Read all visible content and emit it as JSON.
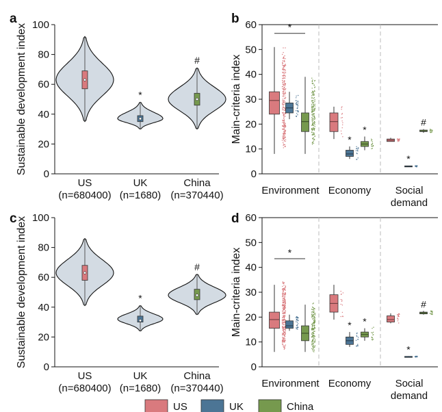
{
  "colors": {
    "US": "#d97a7e",
    "UK": "#4c7595",
    "China": "#76994e",
    "violin": "#d3dbe3",
    "sep": "#bbbbbb"
  },
  "legend": [
    "US",
    "UK",
    "China"
  ],
  "panel_labels": [
    "a",
    "b",
    "c",
    "d"
  ],
  "chart_data": [
    {
      "id": "a",
      "type": "violin",
      "ylabel": "Sustainable development index",
      "ylim": [
        0,
        100
      ],
      "yticks": [
        0,
        20,
        40,
        60,
        80,
        100
      ],
      "categories": [
        "US\n(n=680400)",
        "UK\n(n=1680)",
        "China\n(n=370440)"
      ],
      "series": [
        {
          "name": "US",
          "min": 35,
          "q1": 57,
          "median": 63,
          "q3": 69,
          "max": 92,
          "center": 63,
          "annotation": ""
        },
        {
          "name": "UK",
          "min": 30,
          "q1": 35,
          "median": 37,
          "q3": 39,
          "max": 48,
          "center": 37,
          "annotation": "*"
        },
        {
          "name": "China",
          "min": 30,
          "q1": 46,
          "median": 50,
          "q3": 54,
          "max": 71,
          "center": 50,
          "annotation": "#"
        }
      ]
    },
    {
      "id": "b",
      "type": "box",
      "ylabel": "Main-criteria index",
      "ylim": [
        0,
        60
      ],
      "yticks": [
        0,
        10,
        20,
        30,
        40,
        50,
        60
      ],
      "groups": [
        "Environment",
        "Economy",
        "Social\ndemand"
      ],
      "bracket": {
        "group": "Environment",
        "y": 56.5,
        "label": "*"
      },
      "data": [
        [
          {
            "name": "US",
            "min": 8,
            "q1": 24,
            "median": 29.5,
            "q3": 33,
            "max": 51,
            "pts": [
              8,
              52
            ],
            "annotation": ""
          },
          {
            "name": "UK",
            "min": 22,
            "q1": 24.5,
            "median": 26.5,
            "q3": 28.5,
            "max": 33,
            "pts": [
              22,
              32
            ],
            "annotation": ""
          },
          {
            "name": "China",
            "min": 8,
            "q1": 17,
            "median": 21,
            "q3": 24.5,
            "max": 39,
            "pts": [
              9,
              40
            ],
            "annotation": ""
          }
        ],
        [
          {
            "name": "US",
            "min": 14,
            "q1": 17,
            "median": 21,
            "q3": 24.5,
            "max": 27,
            "pts": [
              14,
              27
            ],
            "annotation": ""
          },
          {
            "name": "UK",
            "min": 6,
            "q1": 7,
            "median": 8,
            "q3": 9.5,
            "max": 11,
            "pts": [
              5.5,
              11.5
            ],
            "annotation": "*"
          },
          {
            "name": "China",
            "min": 9.5,
            "q1": 11,
            "median": 12,
            "q3": 13,
            "max": 15,
            "pts": [
              9.5,
              14.5
            ],
            "annotation": "*"
          }
        ],
        [
          {
            "name": "US",
            "min": 13,
            "q1": 13,
            "median": 13.5,
            "q3": 14,
            "max": 14.5,
            "pts": [
              12.5,
              14.5
            ],
            "annotation": ""
          },
          {
            "name": "UK",
            "min": 3,
            "q1": 3,
            "median": 3,
            "q3": 3.2,
            "max": 3.3,
            "pts": [
              2.8,
              3.3
            ],
            "annotation": "*"
          },
          {
            "name": "China",
            "min": 16.5,
            "q1": 17,
            "median": 17.2,
            "q3": 17.6,
            "max": 18,
            "pts": [
              16.5,
              18
            ],
            "annotation": "#"
          }
        ]
      ]
    },
    {
      "id": "c",
      "type": "violin",
      "ylabel": "Sustainable development index",
      "ylim": [
        0,
        100
      ],
      "yticks": [
        0,
        20,
        40,
        60,
        80,
        100
      ],
      "categories": [
        "US\n(n=680400)",
        "UK\n(n=1680)",
        "China\n(n=370440)"
      ],
      "series": [
        {
          "name": "US",
          "min": 41,
          "q1": 58,
          "median": 63,
          "q3": 68,
          "max": 86,
          "center": 63,
          "annotation": ""
        },
        {
          "name": "UK",
          "min": 24,
          "q1": 30,
          "median": 31,
          "q3": 34,
          "max": 41,
          "center": 32,
          "annotation": "*"
        },
        {
          "name": "China",
          "min": 35,
          "q1": 45,
          "median": 48,
          "q3": 52,
          "max": 62,
          "center": 48,
          "annotation": "#"
        }
      ]
    },
    {
      "id": "d",
      "type": "box",
      "ylabel": "Main-criteria index",
      "ylim": [
        0,
        60
      ],
      "yticks": [
        0,
        10,
        20,
        30,
        40,
        50,
        60
      ],
      "groups": [
        "Environment",
        "Economy",
        "Social\ndemand"
      ],
      "bracket": {
        "group": "Environment",
        "y": 43.5,
        "label": "*"
      },
      "data": [
        [
          {
            "name": "US",
            "min": 6,
            "q1": 15.5,
            "median": 19,
            "q3": 22,
            "max": 33,
            "pts": [
              6,
              35
            ],
            "annotation": ""
          },
          {
            "name": "UK",
            "min": 14.5,
            "q1": 15.5,
            "median": 16.5,
            "q3": 18.5,
            "max": 21,
            "pts": [
              14,
              21
            ],
            "annotation": ""
          },
          {
            "name": "China",
            "min": 6,
            "q1": 10.5,
            "median": 13.5,
            "q3": 16.5,
            "max": 25,
            "pts": [
              5,
              26
            ],
            "annotation": ""
          }
        ],
        [
          {
            "name": "US",
            "min": 19,
            "q1": 22,
            "median": 25.5,
            "q3": 29,
            "max": 33,
            "pts": [
              19,
              33
            ],
            "annotation": ""
          },
          {
            "name": "UK",
            "min": 8,
            "q1": 9,
            "median": 10.5,
            "q3": 12,
            "max": 14,
            "pts": [
              8,
              14
            ],
            "annotation": "*"
          },
          {
            "name": "China",
            "min": 10.5,
            "q1": 12,
            "median": 13,
            "q3": 14,
            "max": 15.5,
            "pts": [
              10.5,
              16
            ],
            "annotation": "*"
          }
        ],
        [
          {
            "name": "US",
            "min": 17.5,
            "q1": 18,
            "median": 19,
            "q3": 20.5,
            "max": 21.5,
            "pts": [
              17.5,
              21.5
            ],
            "annotation": ""
          },
          {
            "name": "UK",
            "min": 4,
            "q1": 4,
            "median": 4.1,
            "q3": 4.2,
            "max": 4.3,
            "pts": [
              3.9,
              4.3
            ],
            "annotation": "*"
          },
          {
            "name": "China",
            "min": 21,
            "q1": 21.3,
            "median": 21.7,
            "q3": 22,
            "max": 22.5,
            "pts": [
              21,
              22.5
            ],
            "annotation": "#"
          }
        ]
      ]
    }
  ]
}
